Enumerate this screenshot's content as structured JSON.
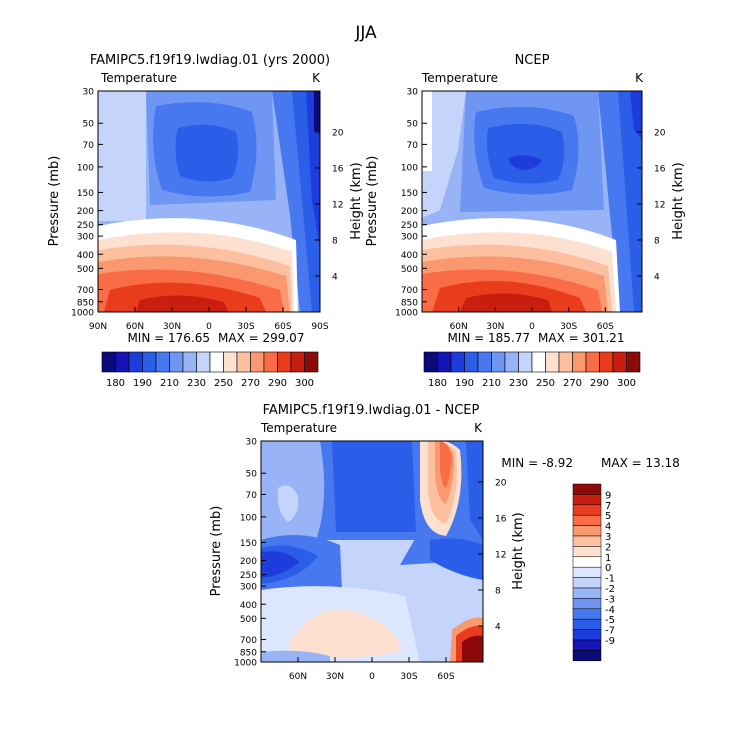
{
  "season_title": "JJA",
  "colors": {
    "abs_scale": [
      "#0a0a78",
      "#1414b4",
      "#1e3cdc",
      "#2a5ee8",
      "#4878f0",
      "#7096f4",
      "#98b4f6",
      "#c4d4fa",
      "#ffffff",
      "#fde0d0",
      "#fcc0a0",
      "#fa9870",
      "#f86c48",
      "#e83c1c",
      "#c81e10",
      "#8c0a0a"
    ],
    "diff_scale": [
      "#8c0a0a",
      "#c81e10",
      "#e83c1c",
      "#f86c48",
      "#fa9870",
      "#fcc0a0",
      "#fde0d0",
      "#ffffff",
      "#dce6fc",
      "#c4d4fa",
      "#98b4f6",
      "#7096f4",
      "#4878f0",
      "#2a5ee8",
      "#1e3cdc",
      "#1414b4",
      "#0a0a78"
    ]
  },
  "chart_data": [
    {
      "type": "heatmap",
      "title": "FAMIPC5.f19f19.lwdiag.01 (yrs 2000)",
      "field_label": "Temperature",
      "units": "K",
      "ylabel": "Pressure (mb)",
      "ylabel_right": "Height (km)",
      "x_ticks": [
        "90N",
        "60N",
        "30N",
        "0",
        "30S",
        "60S",
        "90S"
      ],
      "y_ticks": [
        "30",
        "50",
        "70",
        "100",
        "150",
        "200",
        "250",
        "300",
        "400",
        "500",
        "700",
        "850",
        "1000"
      ],
      "height_ticks": [
        "20",
        "16",
        "12",
        "8",
        "4"
      ],
      "stats": {
        "min_label": "MIN = 176.65",
        "max_label": "MAX = 299.07",
        "min": 176.65,
        "max": 299.07
      },
      "colorbar": {
        "levels": [
          "180",
          "190",
          "210",
          "230",
          "250",
          "270",
          "290",
          "300"
        ]
      }
    },
    {
      "type": "heatmap",
      "title": "NCEP",
      "field_label": "Temperature",
      "units": "K",
      "ylabel": "Pressure (mb)",
      "ylabel_right": "Height (km)",
      "x_ticks": [
        "60N",
        "30N",
        "0",
        "30S",
        "60S"
      ],
      "y_ticks": [
        "30",
        "50",
        "70",
        "100",
        "150",
        "200",
        "250",
        "300",
        "400",
        "500",
        "700",
        "850",
        "1000"
      ],
      "height_ticks": [
        "20",
        "16",
        "12",
        "8",
        "4"
      ],
      "stats": {
        "min_label": "MIN = 185.77",
        "max_label": "MAX = 301.21",
        "min": 185.77,
        "max": 301.21
      },
      "colorbar": {
        "levels": [
          "180",
          "190",
          "210",
          "230",
          "250",
          "270",
          "290",
          "300"
        ]
      }
    },
    {
      "type": "heatmap",
      "title": "FAMIPC5.f19f19.lwdiag.01 - NCEP",
      "field_label": "Temperature",
      "units": "K",
      "ylabel": "Pressure (mb)",
      "ylabel_right": "Height (km)",
      "x_ticks": [
        "60N",
        "30N",
        "0",
        "30S",
        "60S"
      ],
      "y_ticks": [
        "30",
        "50",
        "70",
        "100",
        "150",
        "200",
        "250",
        "300",
        "400",
        "500",
        "700",
        "850",
        "1000"
      ],
      "height_ticks": [
        "20",
        "16",
        "12",
        "8",
        "4"
      ],
      "stats": {
        "min_label": "MIN = -8.92",
        "max_label": "MAX = 13.18",
        "min": -8.92,
        "max": 13.18
      },
      "colorbar": {
        "levels": [
          "9",
          "7",
          "5",
          "4",
          "3",
          "2",
          "1",
          "0",
          "-1",
          "-2",
          "-3",
          "-4",
          "-5",
          "-7",
          "-9"
        ]
      }
    }
  ]
}
